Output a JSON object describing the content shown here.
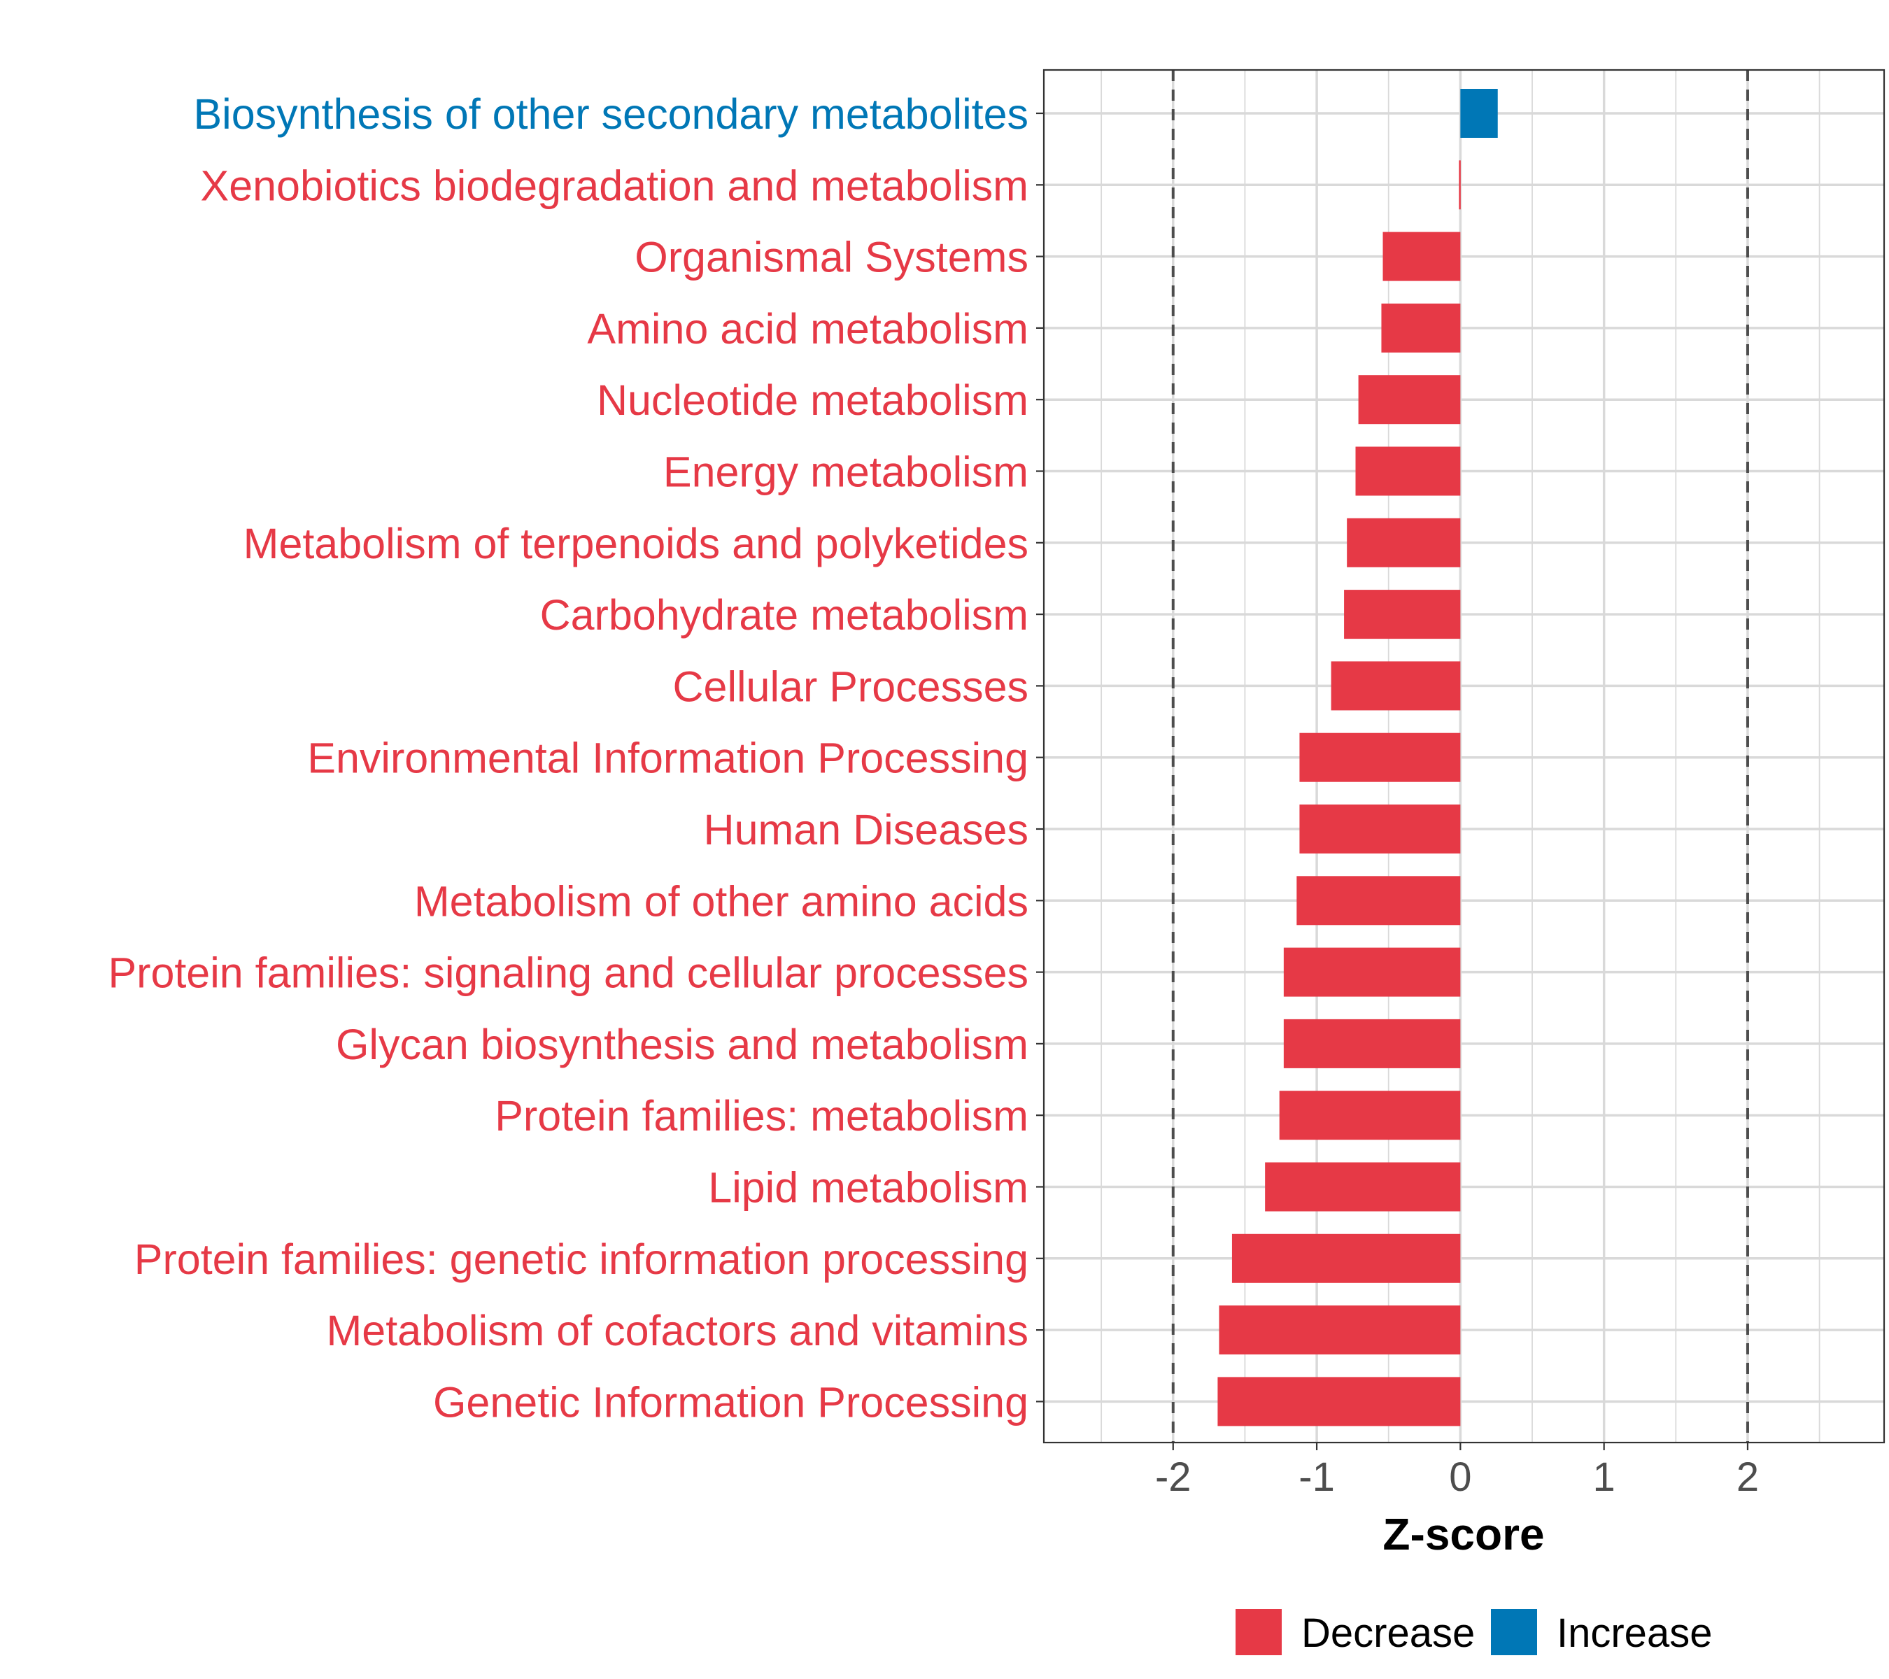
{
  "colors": {
    "decrease": "#E63946",
    "increase": "#0077B6",
    "grid": "#D9D9D9",
    "axis_text": "#4D4D4D",
    "reference_line": "#4D4D4D"
  },
  "chart_data": {
    "type": "bar",
    "orientation": "horizontal",
    "title": "",
    "xlabel": "Z-score",
    "ylabel": "",
    "xlim": [
      -2.9,
      2.95
    ],
    "xticks": [
      -2,
      -1,
      0,
      1,
      2
    ],
    "xtick_labels": [
      "-2",
      "-1",
      "0",
      "1",
      "2"
    ],
    "reference_lines": [
      -2,
      2
    ],
    "grid": true,
    "legend": {
      "placement": "bottom",
      "entries": [
        {
          "label": "Decrease",
          "color_key": "decrease"
        },
        {
          "label": "Increase",
          "color_key": "increase"
        }
      ]
    },
    "categories": [
      "Biosynthesis of other secondary metabolites",
      "Xenobiotics biodegradation and metabolism",
      "Organismal Systems",
      "Amino acid metabolism",
      "Nucleotide metabolism",
      "Energy metabolism",
      "Metabolism of terpenoids and polyketides",
      "Carbohydrate metabolism",
      "Cellular Processes",
      "Environmental Information Processing",
      "Human Diseases",
      "Metabolism of other amino acids",
      "Protein families: signaling and cellular processes",
      "Glycan biosynthesis and metabolism",
      "Protein families: metabolism",
      "Lipid metabolism",
      "Protein families: genetic information processing",
      "Metabolism of cofactors and vitamins",
      "Genetic Information Processing"
    ],
    "values": [
      0.26,
      -0.01,
      -0.54,
      -0.55,
      -0.71,
      -0.73,
      -0.79,
      -0.81,
      -0.9,
      -1.12,
      -1.12,
      -1.14,
      -1.23,
      -1.23,
      -1.26,
      -1.36,
      -1.59,
      -1.68,
      -1.69
    ],
    "direction": [
      "Increase",
      "Decrease",
      "Decrease",
      "Decrease",
      "Decrease",
      "Decrease",
      "Decrease",
      "Decrease",
      "Decrease",
      "Decrease",
      "Decrease",
      "Decrease",
      "Decrease",
      "Decrease",
      "Decrease",
      "Decrease",
      "Decrease",
      "Decrease",
      "Decrease"
    ]
  }
}
